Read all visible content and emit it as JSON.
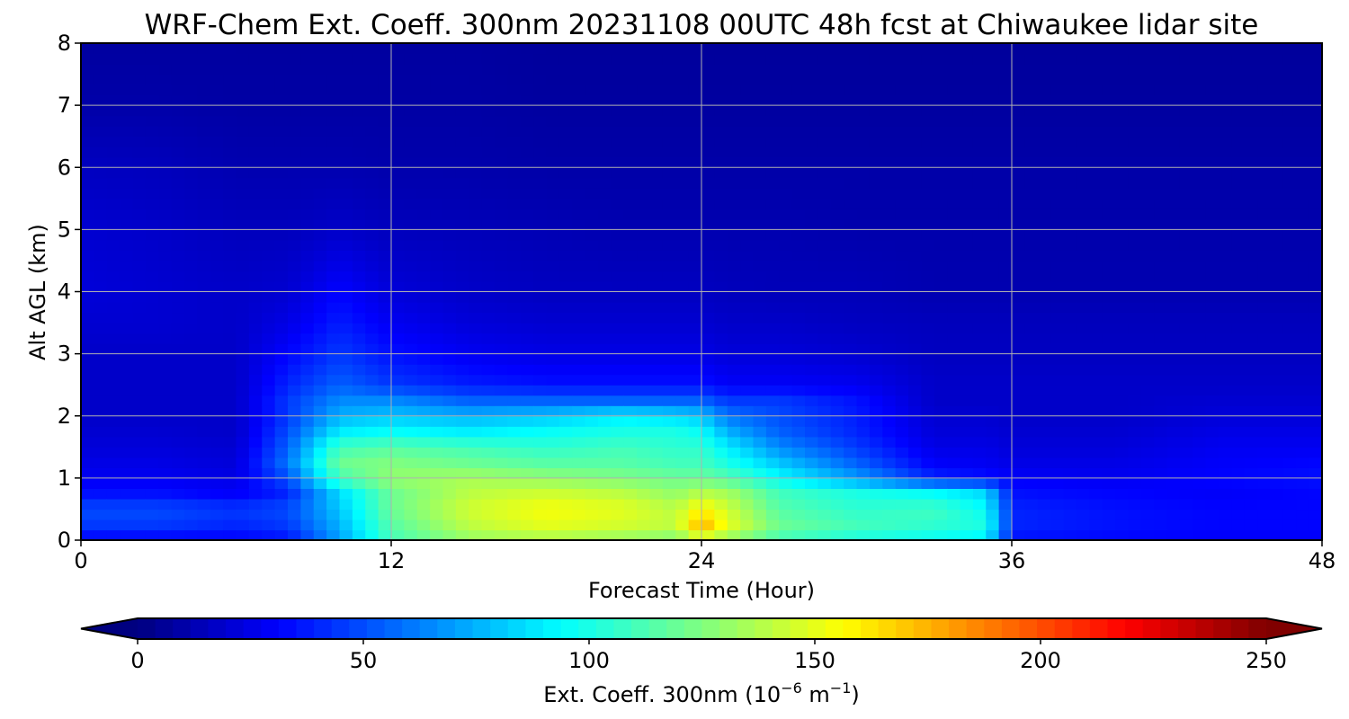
{
  "chart_data": {
    "type": "heatmap",
    "title": "WRF-Chem Ext. Coeff. 300nm  20231108 00UTC 48h fcst at Chiwaukee lidar site",
    "xlabel": "Forecast Time (Hour)",
    "ylabel": "Alt AGL (km)",
    "xlim": [
      0,
      48
    ],
    "ylim": [
      0,
      8
    ],
    "xticks": [
      "0",
      "12",
      "24",
      "36",
      "48"
    ],
    "yticks": [
      "0",
      "1",
      "2",
      "3",
      "4",
      "5",
      "6",
      "7",
      "8"
    ],
    "grid": true,
    "colormap": "jet",
    "colorbar": {
      "orientation": "horizontal",
      "label_prefix": "Ext. Coeff. 300nm  (10",
      "label_exp1": "−6",
      "label_mid": " m",
      "label_exp2": "−1",
      "label_suffix": ")",
      "range": [
        0,
        250
      ],
      "ticks": [
        "0",
        "50",
        "100",
        "150",
        "200",
        "250"
      ],
      "extend": "both"
    },
    "x": [
      0,
      3,
      6,
      8,
      10,
      12,
      15,
      18,
      21,
      23,
      24,
      25,
      27,
      30,
      33,
      35,
      36,
      40,
      44,
      48
    ],
    "y": [
      0,
      0.25,
      0.5,
      0.75,
      1.0,
      1.25,
      1.5,
      1.75,
      2.0,
      2.25,
      2.5,
      3.0,
      3.5,
      4.0,
      5.0,
      6.0,
      7.0,
      8.0
    ],
    "z": [
      [
        30,
        30,
        30,
        35,
        70,
        110,
        130,
        135,
        130,
        125,
        140,
        130,
        110,
        100,
        95,
        90,
        35,
        32,
        30,
        30
      ],
      [
        45,
        45,
        40,
        45,
        75,
        115,
        140,
        150,
        145,
        140,
        175,
        150,
        120,
        110,
        105,
        100,
        40,
        35,
        32,
        32
      ],
      [
        50,
        50,
        45,
        50,
        80,
        120,
        145,
        155,
        150,
        140,
        160,
        145,
        115,
        105,
        110,
        95,
        40,
        35,
        32,
        32
      ],
      [
        35,
        35,
        30,
        40,
        85,
        120,
        140,
        145,
        140,
        130,
        140,
        135,
        110,
        100,
        95,
        85,
        35,
        32,
        30,
        32
      ],
      [
        28,
        28,
        25,
        50,
        110,
        130,
        135,
        130,
        125,
        120,
        120,
        115,
        95,
        70,
        40,
        35,
        30,
        28,
        32,
        35
      ],
      [
        25,
        25,
        22,
        60,
        120,
        125,
        120,
        115,
        115,
        110,
        110,
        100,
        80,
        55,
        30,
        28,
        25,
        25,
        30,
        32
      ],
      [
        22,
        22,
        20,
        55,
        110,
        115,
        110,
        105,
        110,
        105,
        105,
        90,
        65,
        45,
        25,
        25,
        22,
        22,
        28,
        28
      ],
      [
        20,
        20,
        18,
        50,
        90,
        95,
        90,
        95,
        100,
        100,
        95,
        75,
        55,
        40,
        22,
        22,
        20,
        20,
        25,
        25
      ],
      [
        18,
        18,
        18,
        45,
        75,
        80,
        75,
        80,
        90,
        85,
        80,
        60,
        50,
        38,
        20,
        20,
        18,
        18,
        22,
        22
      ],
      [
        18,
        18,
        18,
        45,
        65,
        65,
        55,
        55,
        55,
        55,
        55,
        45,
        45,
        35,
        18,
        18,
        18,
        18,
        20,
        20
      ],
      [
        18,
        18,
        18,
        40,
        55,
        45,
        38,
        35,
        35,
        35,
        35,
        30,
        30,
        28,
        18,
        18,
        18,
        18,
        18,
        18
      ],
      [
        18,
        18,
        18,
        32,
        45,
        35,
        28,
        25,
        25,
        25,
        25,
        22,
        22,
        20,
        16,
        16,
        16,
        16,
        16,
        16
      ],
      [
        20,
        20,
        18,
        25,
        38,
        28,
        22,
        20,
        20,
        20,
        20,
        18,
        18,
        16,
        15,
        15,
        15,
        15,
        15,
        15
      ],
      [
        22,
        20,
        18,
        20,
        32,
        22,
        18,
        16,
        16,
        16,
        16,
        15,
        14,
        14,
        12,
        12,
        12,
        12,
        12,
        12
      ],
      [
        20,
        18,
        15,
        15,
        18,
        15,
        14,
        13,
        12,
        12,
        12,
        12,
        12,
        11,
        11,
        11,
        11,
        11,
        11,
        11
      ],
      [
        16,
        15,
        12,
        12,
        12,
        11,
        11,
        10,
        10,
        10,
        10,
        10,
        10,
        10,
        10,
        10,
        10,
        10,
        10,
        10
      ],
      [
        10,
        10,
        9,
        9,
        9,
        9,
        9,
        8,
        8,
        8,
        8,
        8,
        8,
        8,
        8,
        8,
        8,
        8,
        8,
        8
      ],
      [
        8,
        8,
        8,
        8,
        8,
        8,
        8,
        7,
        7,
        7,
        7,
        7,
        7,
        7,
        7,
        7,
        7,
        7,
        7,
        7
      ]
    ]
  }
}
